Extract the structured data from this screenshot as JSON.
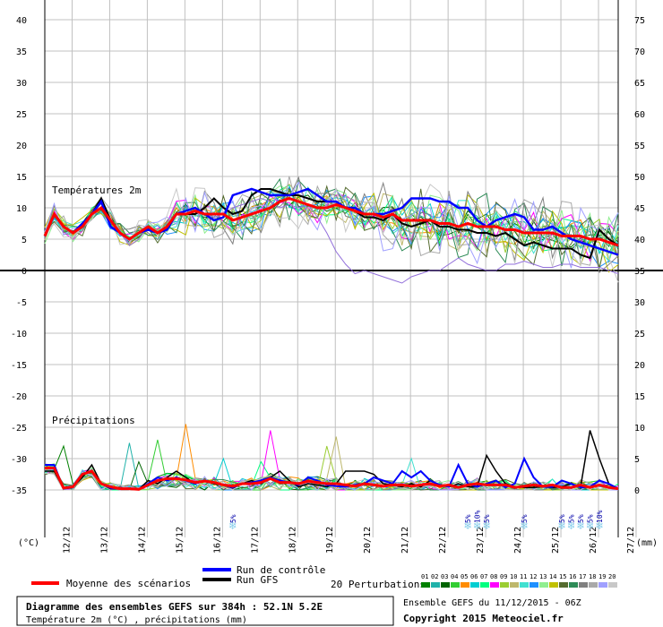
{
  "chart_data": {
    "type": "line",
    "left_axis_label": "(°C)",
    "right_axis_label": "(mm)",
    "left_ticks": [
      40,
      35,
      30,
      25,
      20,
      15,
      10,
      5,
      0,
      -5,
      -10,
      -15,
      -20,
      -25,
      -30,
      -35
    ],
    "right_ticks": [
      75,
      70,
      65,
      60,
      55,
      50,
      45,
      40,
      35,
      30,
      25,
      20,
      15,
      10,
      5,
      0
    ],
    "temp_label": "Températures 2m",
    "precip_label": "Précipitations",
    "x_ticks": [
      "12/12",
      "13/12",
      "14/12",
      "15/12",
      "16/12",
      "17/12",
      "18/12",
      "19/12",
      "20/12",
      "21/12",
      "22/12",
      "23/12",
      "24/12",
      "25/12",
      "26/12",
      "27/12"
    ],
    "ylim_temp": [
      -35,
      40
    ],
    "temperature": {
      "mean": [
        5.5,
        9,
        7,
        6,
        7,
        9,
        10,
        8,
        6,
        5,
        6,
        7,
        6,
        7,
        9,
        9,
        9.5,
        9,
        9,
        9,
        8,
        8.5,
        9,
        9.5,
        10,
        11,
        11.5,
        11,
        10.5,
        10,
        10,
        10.5,
        10,
        9.5,
        9,
        9,
        8.5,
        9,
        8,
        8,
        8,
        8,
        7.5,
        7.5,
        7,
        7.5,
        7,
        7,
        7,
        6.5,
        6.5,
        6,
        6,
        6,
        6,
        5.5,
        5.5,
        5.5,
        5,
        5,
        4.5,
        4
      ],
      "control": [
        5.5,
        9,
        7,
        6,
        7.5,
        9,
        11,
        7,
        6,
        5,
        6,
        6.5,
        6,
        6.5,
        9,
        9.5,
        10,
        9,
        8,
        8.5,
        12,
        12.5,
        13,
        12.5,
        12,
        12,
        12,
        12.5,
        13,
        12,
        11,
        11,
        10,
        10,
        9,
        9,
        9,
        9.5,
        10,
        11.5,
        11.5,
        11.5,
        11,
        11,
        10,
        10,
        8,
        7,
        8,
        8.5,
        9,
        8.5,
        6.5,
        6.5,
        7,
        6,
        5,
        4.5,
        4,
        3.5,
        3,
        2.5
      ],
      "gfs": [
        5.5,
        9,
        7,
        6,
        7,
        9,
        11.5,
        8,
        6,
        5,
        6,
        7,
        6,
        7,
        9,
        9,
        9,
        10,
        11.5,
        10,
        9,
        9.5,
        12,
        13,
        13,
        12.5,
        12,
        12,
        11.5,
        11,
        11,
        11,
        10,
        9.5,
        8.5,
        8.5,
        8,
        9,
        7.5,
        7,
        7.5,
        8,
        7,
        7,
        6.5,
        6.5,
        6,
        6,
        5.5,
        6,
        5,
        4,
        4.5,
        4,
        3.5,
        3.5,
        3.5,
        2.5,
        2,
        6.5,
        5,
        4
      ],
      "low_outlier": [
        5.5,
        9,
        7,
        6,
        7.5,
        9,
        10,
        8,
        6,
        4,
        5,
        7,
        6,
        7,
        9,
        9,
        9,
        9,
        8.5,
        9,
        10,
        10.5,
        11,
        11.5,
        11,
        10,
        10.5,
        10,
        10.5,
        8.5,
        6,
        3,
        1,
        -0.5,
        0,
        -0.5,
        -1,
        -1.5,
        -2,
        -1,
        -0.5,
        0,
        0,
        1,
        2,
        1,
        0.5,
        0,
        0,
        1,
        1,
        1.5,
        1,
        0.5,
        0.5,
        1,
        1,
        0.5,
        0.5,
        0.5,
        0,
        -0.5
      ]
    },
    "precipitation": {
      "mean": [
        3.5,
        3.5,
        0.3,
        0.5,
        2.5,
        3,
        1,
        0.5,
        0.2,
        0.2,
        0.1,
        0.8,
        1.5,
        1.8,
        1.8,
        1.6,
        1.2,
        1.4,
        1.2,
        0.8,
        0.6,
        1,
        1,
        1.2,
        1.8,
        1.2,
        1.2,
        1,
        1.4,
        1.2,
        1,
        1,
        0.8,
        0.6,
        1,
        0.8,
        0.6,
        0.8,
        0.8,
        0.6,
        0.8,
        1,
        0.6,
        0.8,
        0.4,
        0.8,
        1,
        0.8,
        0.8,
        0.8,
        0.4,
        0.6,
        0.8,
        0.6,
        0.8,
        0.4,
        0.4,
        0.8,
        0.4,
        0.8,
        0.4,
        0.2
      ],
      "control": [
        4,
        4,
        0.2,
        0.4,
        2.5,
        3,
        1,
        0.3,
        0.2,
        0.2,
        0.1,
        1,
        2,
        1.5,
        2,
        1.5,
        1,
        1.5,
        1.2,
        0.8,
        0.4,
        1,
        1.2,
        1.5,
        2,
        1.5,
        1.2,
        0.8,
        2,
        1.5,
        0.8,
        0.6,
        0.5,
        0.8,
        1,
        2,
        1.5,
        1,
        3,
        2,
        3,
        1.5,
        0.8,
        0.5,
        4,
        1,
        0.5,
        1,
        1.5,
        0.4,
        1,
        5,
        2,
        0.5,
        0.5,
        1.5,
        1,
        0.4,
        0.5,
        1.5,
        1,
        0.2
      ],
      "gfs": [
        3,
        3,
        0.2,
        0.5,
        2,
        4,
        1,
        0.2,
        0.2,
        0.2,
        0.1,
        1.5,
        1,
        2,
        3,
        2,
        1,
        1.5,
        1,
        0.8,
        0.3,
        1,
        1.5,
        1,
        2,
        3,
        1.5,
        0.5,
        1,
        0.8,
        0.5,
        1,
        3,
        3,
        3,
        2.5,
        1,
        0.8,
        0.5,
        1,
        0.5,
        1.5,
        0.8,
        0.5,
        1,
        0.5,
        0.5,
        5.5,
        3,
        1,
        0.5,
        0.4,
        0.4,
        0.5,
        0.4,
        0.5,
        1,
        0.5,
        9.5,
        5,
        1,
        0.2
      ],
      "peaks": [
        7,
        7.5,
        4.5,
        8,
        10.5,
        5,
        4.5,
        9.5,
        7,
        8.5,
        5
      ]
    },
    "precip_peak_times": [
      2.2,
      9,
      9.8,
      11.6,
      15.3,
      18.6,
      22.5,
      24,
      29.5,
      30.5,
      38.5
    ],
    "ylim_precip": [
      0,
      10
    ],
    "snow_markers": [
      {
        "t": 20,
        "label": "5%"
      },
      {
        "t": 45,
        "label": "5%"
      },
      {
        "t": 46,
        "label": "10%"
      },
      {
        "t": 47,
        "label": "5%"
      },
      {
        "t": 51,
        "label": "5%"
      },
      {
        "t": 55,
        "label": "5%"
      },
      {
        "t": 56,
        "label": "5%"
      },
      {
        "t": 57,
        "label": "5%"
      },
      {
        "t": 58,
        "label": "5%"
      },
      {
        "t": 59,
        "label": "10%"
      }
    ],
    "legend": {
      "mean_label": "Moyenne des scénarios",
      "control_label": "Run de contrôle",
      "gfs_label": "Run GFS",
      "perturbations_label": "20 Perturbations",
      "perturbation_numbers": [
        "01",
        "02",
        "03",
        "04",
        "05",
        "06",
        "07",
        "08",
        "09",
        "10",
        "11",
        "12",
        "13",
        "14",
        "15",
        "16",
        "17",
        "18",
        "19",
        "20"
      ],
      "perturbation_colors": [
        "#008000",
        "#20b2aa",
        "#006400",
        "#32cd32",
        "#ff8c00",
        "#00ced1",
        "#00ff7f",
        "#ff00ff",
        "#9acd32",
        "#bdb76b",
        "#40e0d0",
        "#1e90ff",
        "#90ee90",
        "#c0c000",
        "#556b2f",
        "#2e8b57",
        "#808080",
        "#a9a9a9",
        "#a0a0ff",
        "#c8c8c8"
      ]
    },
    "colors": {
      "mean": "#ff0000",
      "control": "#0000ff",
      "gfs": "#000000",
      "low_outlier": "#9370db",
      "grid": "#c0c0c0",
      "snow": "#87ceeb"
    }
  },
  "footer": {
    "box_title": "Diagramme des ensembles GEFS sur 384h : 52.1N 5.2E",
    "box_subtitle": "Température 2m (°C) , précipitations (mm)",
    "run_info": "Ensemble GEFS du 11/12/2015 - 06Z",
    "copyright": "Copyright 2015 Meteociel.fr"
  }
}
